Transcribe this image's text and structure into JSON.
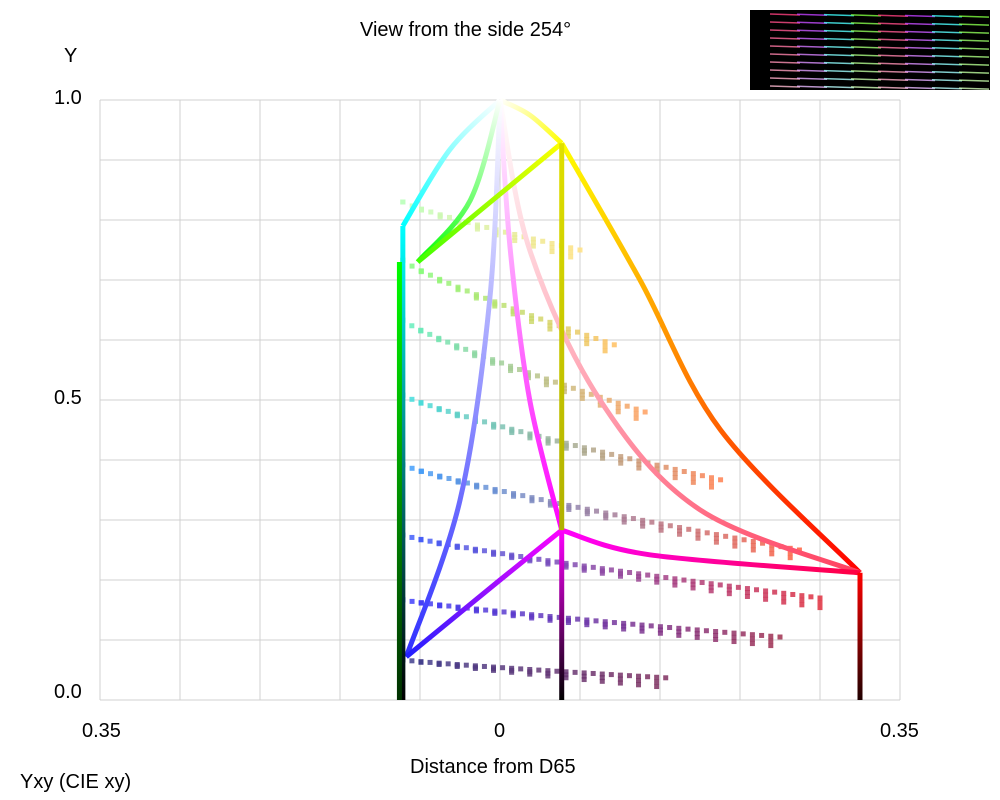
{
  "chart_data": {
    "type": "line",
    "title": "View from the side 254°",
    "ylabel": "Y",
    "xlabel": "Distance from D65",
    "footer": "Yxy (CIE xy)",
    "xlim": [
      -0.35,
      0.35
    ],
    "ylim": [
      0,
      1
    ],
    "x_tick_labels": [
      {
        "v": -0.35,
        "label": "0.35"
      },
      {
        "v": 0,
        "label": "0"
      },
      {
        "v": 0.35,
        "label": "0.35"
      }
    ],
    "y_tick_labels": [
      {
        "v": 1.0,
        "label": "1.0"
      },
      {
        "v": 0.5,
        "label": "0.5"
      },
      {
        "v": 0.0,
        "label": "0.0"
      }
    ],
    "grid": true,
    "edges": [
      {
        "name": "white-yellow",
        "colors": [
          "#ffffff",
          "#ffff00"
        ],
        "points": [
          [
            0,
            1
          ],
          [
            0.026,
            0.975
          ],
          [
            0.054,
            0.928
          ]
        ]
      },
      {
        "name": "yellow-red",
        "colors": [
          "#ffff00",
          "#ff0000"
        ],
        "points": [
          [
            0.054,
            0.928
          ],
          [
            0.1225,
            0.7
          ],
          [
            0.193,
            0.45
          ],
          [
            0.315,
            0.212
          ]
        ]
      },
      {
        "name": "white-red",
        "colors": [
          "#ffffff",
          "#ff4060"
        ],
        "points": [
          [
            0,
            1
          ],
          [
            0.026,
            0.75
          ],
          [
            0.0875,
            0.5
          ],
          [
            0.175,
            0.317
          ],
          [
            0.315,
            0.212
          ]
        ]
      },
      {
        "name": "white-magenta",
        "colors": [
          "#ffffff",
          "#ff00ff"
        ],
        "points": [
          [
            0,
            1
          ],
          [
            0.009,
            0.75
          ],
          [
            0.026,
            0.5
          ],
          [
            0.054,
            0.283
          ]
        ]
      },
      {
        "name": "white-blue",
        "colors": [
          "#ffffff",
          "#3030ff"
        ],
        "points": [
          [
            0,
            1
          ],
          [
            -0.009,
            0.667
          ],
          [
            -0.035,
            0.333
          ],
          [
            -0.082,
            0.072
          ]
        ]
      },
      {
        "name": "white-cyan",
        "colors": [
          "#ffffff",
          "#00ffff"
        ],
        "points": [
          [
            0,
            1
          ],
          [
            -0.044,
            0.917
          ],
          [
            -0.085,
            0.79
          ]
        ]
      },
      {
        "name": "white-green",
        "colors": [
          "#ffffff",
          "#00ff00"
        ],
        "points": [
          [
            0,
            1
          ],
          [
            -0.026,
            0.833
          ],
          [
            -0.072,
            0.73
          ]
        ]
      },
      {
        "name": "yellow-green",
        "colors": [
          "#ffff00",
          "#40ff00"
        ],
        "points": [
          [
            0.054,
            0.928
          ],
          [
            -0.072,
            0.73
          ]
        ]
      },
      {
        "name": "magenta-red",
        "colors": [
          "#ff00ff",
          "#ff0040"
        ],
        "points": [
          [
            0.054,
            0.283
          ],
          [
            0.131,
            0.242
          ],
          [
            0.315,
            0.212
          ]
        ]
      },
      {
        "name": "magenta-blue",
        "colors": [
          "#ff00ff",
          "#2020ff"
        ],
        "points": [
          [
            0.054,
            0.283
          ],
          [
            0,
            0.2
          ],
          [
            -0.082,
            0.072
          ]
        ]
      },
      {
        "name": "cyan-black",
        "colors": [
          "#00ffff",
          "#000000"
        ],
        "points": [
          [
            -0.085,
            0.79
          ],
          [
            -0.085,
            0
          ]
        ]
      },
      {
        "name": "green-black",
        "colors": [
          "#00ff00",
          "#003000"
        ],
        "points": [
          [
            -0.088,
            0.73
          ],
          [
            -0.088,
            0
          ]
        ]
      },
      {
        "name": "yellow-magenta",
        "colors": [
          "#e0e000",
          "#b0b000"
        ],
        "points": [
          [
            0.054,
            0.928
          ],
          [
            0.054,
            0.283
          ]
        ]
      },
      {
        "name": "magenta-black",
        "colors": [
          "#ff00ff",
          "#000000"
        ],
        "points": [
          [
            0.054,
            0.283
          ],
          [
            0.054,
            0
          ]
        ]
      },
      {
        "name": "red-black",
        "colors": [
          "#ff0000",
          "#200000"
        ],
        "points": [
          [
            0.315,
            0.212
          ],
          [
            0.315,
            0
          ]
        ]
      }
    ],
    "slices": [
      {
        "y_start": 0.067,
        "x_end": 0.145,
        "y_end": 0.037,
        "colors": [
          "#404090",
          "#803060"
        ]
      },
      {
        "y_start": 0.167,
        "x_end": 0.245,
        "y_end": 0.105,
        "colors": [
          "#4040ff",
          "#a03050"
        ]
      },
      {
        "y_start": 0.275,
        "x_end": 0.28,
        "y_end": 0.17,
        "colors": [
          "#4060ff",
          "#e03040"
        ]
      },
      {
        "y_start": 0.392,
        "x_end": 0.262,
        "y_end": 0.25,
        "colors": [
          "#40a0ff",
          "#ff6040"
        ]
      },
      {
        "y_start": 0.508,
        "x_end": 0.193,
        "y_end": 0.367,
        "colors": [
          "#40e0e0",
          "#ff8050"
        ]
      },
      {
        "y_start": 0.633,
        "x_end": 0.127,
        "y_end": 0.48,
        "colors": [
          "#60f0c0",
          "#ffa060"
        ]
      },
      {
        "y_start": 0.733,
        "x_end": 0.1,
        "y_end": 0.592,
        "colors": [
          "#80ff80",
          "#ffc060"
        ]
      },
      {
        "y_start": 0.83,
        "x_end": 0.07,
        "y_end": 0.75,
        "colors": [
          "#c0ffc0",
          "#ffe080"
        ]
      }
    ]
  }
}
